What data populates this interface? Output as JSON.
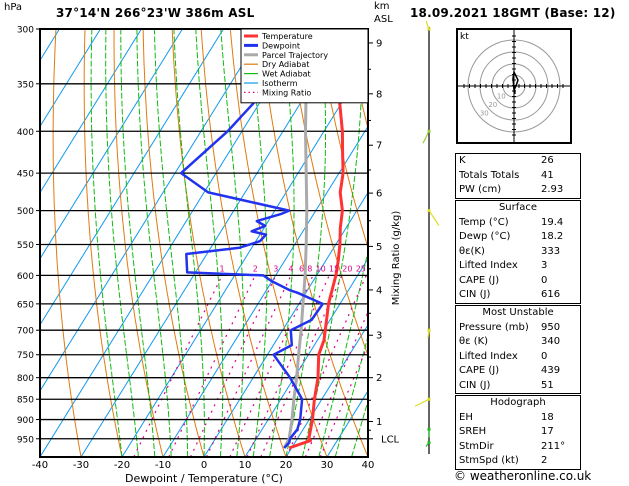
{
  "header": {
    "pressure_unit": "hPa",
    "location": "37°14'N  266°23'W  386m  ASL",
    "height_unit_line1": "km",
    "height_unit_line2": "ASL",
    "datetime": "18.09.2021  18GMT  (Base: 12)"
  },
  "chart_data": {
    "type": "line",
    "subtype": "skew-T log-P diagram",
    "title": "37°14'N 266°23'W 386m ASL",
    "xlabel": "Dewpoint / Temperature (°C)",
    "ylabel": "hPa",
    "right_axis_label": "Mixing Ratio (g/kg)",
    "xlim": [
      -40,
      40
    ],
    "ylim_hpa": [
      1000,
      300
    ],
    "x_ticks": [
      "-40",
      "-30",
      "-20",
      "-10",
      "0",
      "10",
      "20",
      "30",
      "40"
    ],
    "pressure_ticks": [
      "300",
      "350",
      "400",
      "450",
      "500",
      "550",
      "600",
      "650",
      "700",
      "750",
      "800",
      "850",
      "900",
      "950"
    ],
    "km_ticks": [
      {
        "label": "9",
        "p": 312
      },
      {
        "label": "8",
        "p": 360
      },
      {
        "label": "7",
        "p": 416
      },
      {
        "label": "6",
        "p": 476
      },
      {
        "label": "5",
        "p": 553
      },
      {
        "label": "4",
        "p": 625
      },
      {
        "label": "3",
        "p": 710
      },
      {
        "label": "2",
        "p": 800
      },
      {
        "label": "1",
        "p": 905
      },
      {
        "label": "LCL",
        "p": 950
      }
    ],
    "mixing_ratio_labels": [
      "1",
      "2",
      "3",
      "4",
      "6",
      "8",
      "10",
      "15",
      "20",
      "25"
    ],
    "legend_position": "top-center",
    "legend": [
      {
        "name": "Temperature",
        "color": "#ff3333",
        "style": "solid-thick"
      },
      {
        "name": "Dewpoint",
        "color": "#2233ee",
        "style": "solid-thick"
      },
      {
        "name": "Parcel Trajectory",
        "color": "#aaaaaa",
        "style": "solid-thick"
      },
      {
        "name": "Dry Adiabat",
        "color": "#e07a10",
        "style": "solid"
      },
      {
        "name": "Wet Adiabat",
        "color": "#11bb11",
        "style": "solid"
      },
      {
        "name": "Isotherm",
        "color": "#1199ee",
        "style": "solid"
      },
      {
        "name": "Mixing Ratio",
        "color": "#dd0088",
        "style": "dotted"
      }
    ],
    "series": [
      {
        "name": "Temperature",
        "color": "#ff3333",
        "points": [
          [
            975,
            19.4
          ],
          [
            955,
            23.5
          ],
          [
            950,
            22.8
          ],
          [
            925,
            21.8
          ],
          [
            900,
            20.8
          ],
          [
            850,
            18.2
          ],
          [
            800,
            15.8
          ],
          [
            750,
            12.5
          ],
          [
            720,
            11.6
          ],
          [
            700,
            10.4
          ],
          [
            650,
            7.2
          ],
          [
            600,
            4.7
          ],
          [
            575,
            3.0
          ],
          [
            550,
            1.0
          ],
          [
            525,
            -1.4
          ],
          [
            500,
            -3.5
          ],
          [
            475,
            -6.8
          ],
          [
            450,
            -9.0
          ],
          [
            425,
            -12.2
          ],
          [
            400,
            -15.5
          ],
          [
            375,
            -19.5
          ],
          [
            350,
            -23.8
          ],
          [
            330,
            -27.8
          ],
          [
            310,
            -31.0
          ],
          [
            300,
            -32.0
          ]
        ]
      },
      {
        "name": "Dewpoint",
        "color": "#2233ee",
        "points": [
          [
            975,
            18.2
          ],
          [
            960,
            18.6
          ],
          [
            950,
            18.2
          ],
          [
            925,
            18.6
          ],
          [
            900,
            17.8
          ],
          [
            850,
            15.2
          ],
          [
            800,
            9.0
          ],
          [
            750,
            1.5
          ],
          [
            730,
            4.5
          ],
          [
            700,
            2.0
          ],
          [
            680,
            5.5
          ],
          [
            650,
            5.8
          ],
          [
            630,
            -2.0
          ],
          [
            625,
            -4.5
          ],
          [
            610,
            -10.0
          ],
          [
            600,
            -13.0
          ],
          [
            595,
            -32.0
          ],
          [
            585,
            -33.0
          ],
          [
            565,
            -35.0
          ],
          [
            555,
            -23.0
          ],
          [
            545,
            -19.0
          ],
          [
            535,
            -18.5
          ],
          [
            530,
            -22.5
          ],
          [
            522,
            -20.0
          ],
          [
            515,
            -22.8
          ],
          [
            505,
            -18.0
          ],
          [
            500,
            -16.5
          ],
          [
            475,
            -39.0
          ],
          [
            450,
            -48.5
          ],
          [
            400,
            -43.5
          ],
          [
            350,
            -40.0
          ],
          [
            340,
            -41.0
          ],
          [
            320,
            -30.0
          ],
          [
            312,
            -35.0
          ],
          [
            300,
            -48.0
          ]
        ]
      },
      {
        "name": "Parcel Trajectory",
        "color": "#aaaaaa",
        "points": [
          [
            975,
            18.2
          ],
          [
            950,
            18.0
          ],
          [
            900,
            15.8
          ],
          [
            850,
            13.2
          ],
          [
            800,
            10.6
          ],
          [
            750,
            7.6
          ],
          [
            700,
            4.5
          ],
          [
            650,
            1.0
          ],
          [
            600,
            -2.8
          ],
          [
            550,
            -7.2
          ],
          [
            500,
            -12.2
          ],
          [
            450,
            -18.0
          ],
          [
            400,
            -24.5
          ],
          [
            350,
            -31.5
          ],
          [
            300,
            -39.5
          ]
        ]
      }
    ],
    "wind_barbs_levels_hpa": [
      300,
      400,
      500,
      700,
      850,
      925,
      960
    ]
  },
  "hodograph": {
    "unit_label": "kt",
    "ring_labels": [
      "10",
      "20",
      "30"
    ]
  },
  "indices": {
    "rows": [
      {
        "label": "K",
        "value": "26"
      },
      {
        "label": "Totals Totals",
        "value": "41"
      },
      {
        "label": "PW (cm)",
        "value": "2.93"
      }
    ]
  },
  "surface": {
    "title": "Surface",
    "rows": [
      {
        "label": "Temp (°C)",
        "value": "19.4"
      },
      {
        "label": "Dewp (°C)",
        "value": "18.2"
      },
      {
        "label": "θε(K)",
        "value": "333"
      },
      {
        "label": "Lifted Index",
        "value": "3"
      },
      {
        "label": "CAPE (J)",
        "value": "0"
      },
      {
        "label": "CIN (J)",
        "value": "616"
      }
    ]
  },
  "most_unstable": {
    "title": "Most Unstable",
    "rows": [
      {
        "label": "Pressure (mb)",
        "value": "950"
      },
      {
        "label": "θε (K)",
        "value": "340"
      },
      {
        "label": "Lifted Index",
        "value": "0"
      },
      {
        "label": "CAPE (J)",
        "value": "439"
      },
      {
        "label": "CIN (J)",
        "value": "51"
      }
    ]
  },
  "hodograph_table": {
    "title": "Hodograph",
    "rows": [
      {
        "label": "EH",
        "value": "18"
      },
      {
        "label": "SREH",
        "value": "17"
      },
      {
        "label": "StmDir",
        "value": "211°"
      },
      {
        "label": "StmSpd (kt)",
        "value": "2"
      }
    ]
  },
  "footer": {
    "copyright": "© weatheronline.co.uk"
  }
}
